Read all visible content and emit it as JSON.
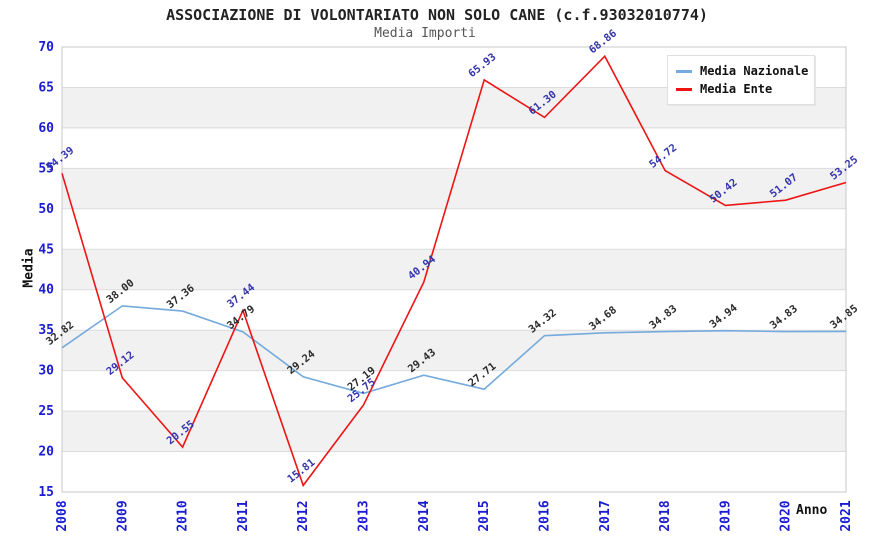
{
  "title": "ASSOCIAZIONE DI VOLONTARIATO NON SOLO CANE (c.f.93032010774)",
  "subtitle": "Media Importi",
  "axes": {
    "y_label": "Media",
    "x_label": "Anno"
  },
  "legend": [
    {
      "label": "Media Nazionale",
      "color": "#74aadd"
    },
    {
      "label": "Media Ente",
      "color": "#ee1414"
    }
  ],
  "chart_data": {
    "type": "line",
    "title": "ASSOCIAZIONE DI VOLONTARIATO NON SOLO CANE (c.f.93032010774)",
    "subtitle": "Media Importi",
    "xlabel": "Anno",
    "ylabel": "Media",
    "x": [
      2008,
      2009,
      2010,
      2011,
      2012,
      2013,
      2014,
      2015,
      2016,
      2017,
      2018,
      2019,
      2020,
      2021
    ],
    "series": [
      {
        "name": "Media Nazionale",
        "color": "#74aadd",
        "label_color": "#2b2b2b",
        "values": [
          32.82,
          38.0,
          37.36,
          34.79,
          29.24,
          27.19,
          29.43,
          27.71,
          34.32,
          34.68,
          34.83,
          34.94,
          34.83,
          34.85
        ]
      },
      {
        "name": "Media Ente",
        "color": "#ee1414",
        "label_color": "#3434ad",
        "values": [
          54.39,
          29.12,
          20.55,
          37.44,
          15.81,
          25.75,
          40.94,
          65.93,
          61.3,
          68.86,
          54.72,
          50.42,
          51.07,
          53.25
        ]
      }
    ],
    "ylim": [
      15,
      70
    ],
    "yticks": [
      15,
      20,
      25,
      30,
      35,
      40,
      45,
      50,
      55,
      60,
      65,
      70
    ],
    "grid": true,
    "band_color": "#f1f1f1",
    "grid_color": "#dcdcdc",
    "border_color": "#c8c8c8",
    "tick_color": "#1b1bd1",
    "legend_position": "top-right"
  }
}
